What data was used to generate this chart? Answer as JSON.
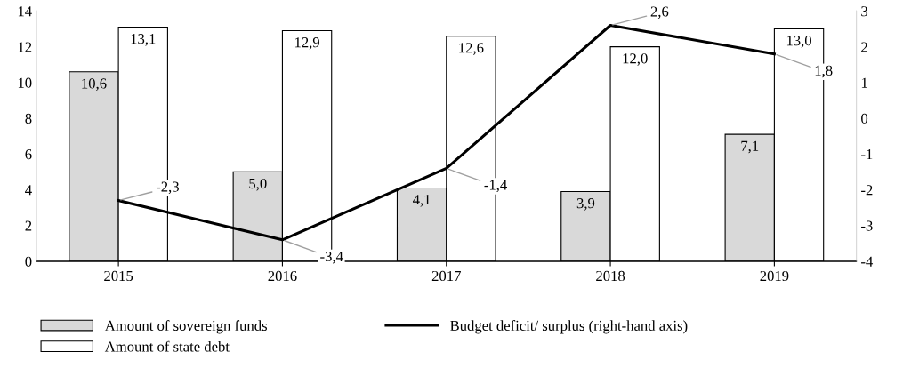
{
  "chart_data": {
    "type": "bar",
    "categories": [
      "2015",
      "2016",
      "2017",
      "2018",
      "2019"
    ],
    "series": [
      {
        "name": "Amount of sovereign funds",
        "color": "#d9d9d9",
        "values": [
          10.6,
          5.0,
          4.1,
          3.9,
          7.1
        ],
        "value_labels": [
          "10,6",
          "5,0",
          "4,1",
          "3,9",
          "7,1"
        ]
      },
      {
        "name": "Amount of state debt",
        "color": "#ffffff",
        "values": [
          13.1,
          12.9,
          12.6,
          12.0,
          13.0
        ],
        "value_labels": [
          "13,1",
          "12,9",
          "12,6",
          "12,0",
          "13,0"
        ]
      },
      {
        "name": "Budget deficit/ surplus (right-hand axis)",
        "type": "line",
        "axis": "y2",
        "color": "#000000",
        "values": [
          -2.3,
          -3.4,
          -1.4,
          2.6,
          1.8
        ],
        "value_labels": [
          "-2,3",
          "-3,4",
          "-1,4",
          "2,6",
          "1,8"
        ]
      }
    ],
    "ylim": [
      0,
      14
    ],
    "yticks": [
      0,
      2,
      4,
      6,
      8,
      10,
      12,
      14
    ],
    "y2lim": [
      -4,
      3
    ],
    "y2ticks": [
      {
        "value": -4,
        "label": "-4"
      },
      {
        "value": -3,
        "label": "-3"
      },
      {
        "value": -2,
        "label": "-2"
      },
      {
        "value": -1,
        "label": "-1"
      },
      0,
      1,
      2,
      3
    ],
    "grid": false,
    "legend": "bottom",
    "marker": "none",
    "line_style": "solid"
  }
}
